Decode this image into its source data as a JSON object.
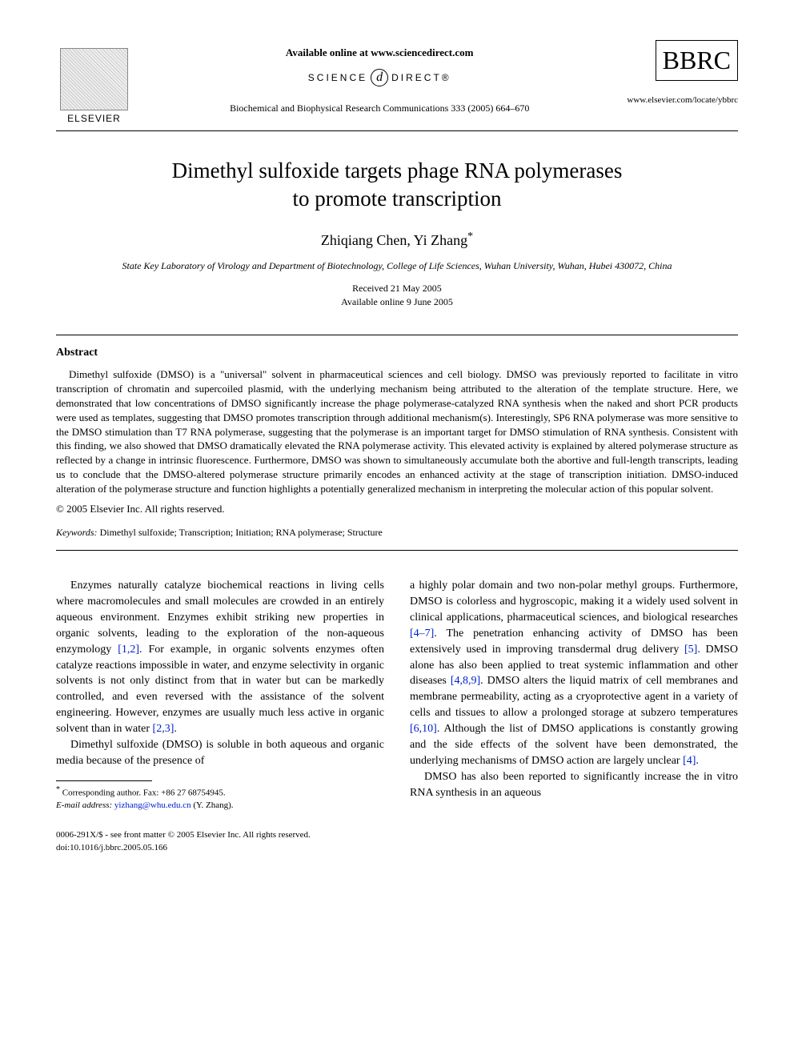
{
  "header": {
    "elsevier_label": "ELSEVIER",
    "available_online": "Available online at www.sciencedirect.com",
    "science_left": "SCIENCE",
    "science_d": "d",
    "science_right": "DIRECT®",
    "journal_line": "Biochemical and Biophysical Research Communications 333 (2005) 664–670",
    "bbrc": "BBRC",
    "locate_url": "www.elsevier.com/locate/ybbrc"
  },
  "article": {
    "title_line1": "Dimethyl sulfoxide targets phage RNA polymerases",
    "title_line2": "to promote transcription",
    "authors": "Zhiqiang Chen, Yi Zhang",
    "corr_mark": "*",
    "affiliation": "State Key Laboratory of Virology and Department of Biotechnology, College of Life Sciences, Wuhan University, Wuhan, Hubei 430072, China",
    "received": "Received 21 May 2005",
    "available": "Available online 9 June 2005"
  },
  "abstract": {
    "heading": "Abstract",
    "text": "Dimethyl sulfoxide (DMSO) is a \"universal\" solvent in pharmaceutical sciences and cell biology. DMSO was previously reported to facilitate in vitro transcription of chromatin and supercoiled plasmid, with the underlying mechanism being attributed to the alteration of the template structure. Here, we demonstrated that low concentrations of DMSO significantly increase the phage polymerase-catalyzed RNA synthesis when the naked and short PCR products were used as templates, suggesting that DMSO promotes transcription through additional mechanism(s). Interestingly, SP6 RNA polymerase was more sensitive to the DMSO stimulation than T7 RNA polymerase, suggesting that the polymerase is an important target for DMSO stimulation of RNA synthesis. Consistent with this finding, we also showed that DMSO dramatically elevated the RNA polymerase activity. This elevated activity is explained by altered polymerase structure as reflected by a change in intrinsic fluorescence. Furthermore, DMSO was shown to simultaneously accumulate both the abortive and full-length transcripts, leading us to conclude that the DMSO-altered polymerase structure primarily encodes an enhanced activity at the stage of transcription initiation. DMSO-induced alteration of the polymerase structure and function highlights a potentially generalized mechanism in interpreting the molecular action of this popular solvent.",
    "copyright": "© 2005 Elsevier Inc. All rights reserved.",
    "keywords_label": "Keywords:",
    "keywords": " Dimethyl sulfoxide; Transcription; Initiation; RNA polymerase; Structure"
  },
  "body": {
    "left": {
      "p1a": "Enzymes naturally catalyze biochemical reactions in living cells where macromolecules and small molecules are crowded in an entirely aqueous environment. Enzymes exhibit striking new properties in organic solvents, leading to the exploration of the non-aqueous enzymology ",
      "ref1": "[1,2]",
      "p1b": ". For example, in organic solvents enzymes often catalyze reactions impossible in water, and enzyme selectivity in organic solvents is not only distinct from that in water but can be markedly controlled, and even reversed with the assistance of the solvent engineering. However, enzymes are usually much less active in organic solvent than in water ",
      "ref2": "[2,3]",
      "p1c": ".",
      "p2": "Dimethyl sulfoxide (DMSO) is soluble in both aqueous and organic media because of the presence of"
    },
    "right": {
      "p1a": "a highly polar domain and two non-polar methyl groups. Furthermore, DMSO is colorless and hygroscopic, making it a widely used solvent in clinical applications, pharmaceutical sciences, and biological researches ",
      "ref1": "[4–7]",
      "p1b": ". The penetration enhancing activity of DMSO has been extensively used in improving transdermal drug delivery ",
      "ref2": "[5]",
      "p1c": ". DMSO alone has also been applied to treat systemic inflammation and other diseases ",
      "ref3": "[4,8,9]",
      "p1d": ". DMSO alters the liquid matrix of cell membranes and membrane permeability, acting as a cryoprotective agent in a variety of cells and tissues to allow a prolonged storage at subzero temperatures ",
      "ref4": "[6,10]",
      "p1e": ". Although the list of DMSO applications is constantly growing and the side effects of the solvent have been demonstrated, the underlying mechanisms of DMSO action are largely unclear ",
      "ref5": "[4]",
      "p1f": ".",
      "p2": "DMSO has also been reported to significantly increase the in vitro RNA synthesis in an aqueous"
    }
  },
  "footnote": {
    "corr": "Corresponding author. Fax: +86 27 68754945.",
    "email_label": "E-mail address:",
    "email": "yizhang@whu.edu.cn",
    "email_paren": " (Y. Zhang)."
  },
  "bottom": {
    "line1": "0006-291X/$ - see front matter © 2005 Elsevier Inc. All rights reserved.",
    "line2": "doi:10.1016/j.bbrc.2005.05.166"
  },
  "colors": {
    "link": "#0020cc",
    "text": "#000000",
    "background": "#ffffff"
  }
}
